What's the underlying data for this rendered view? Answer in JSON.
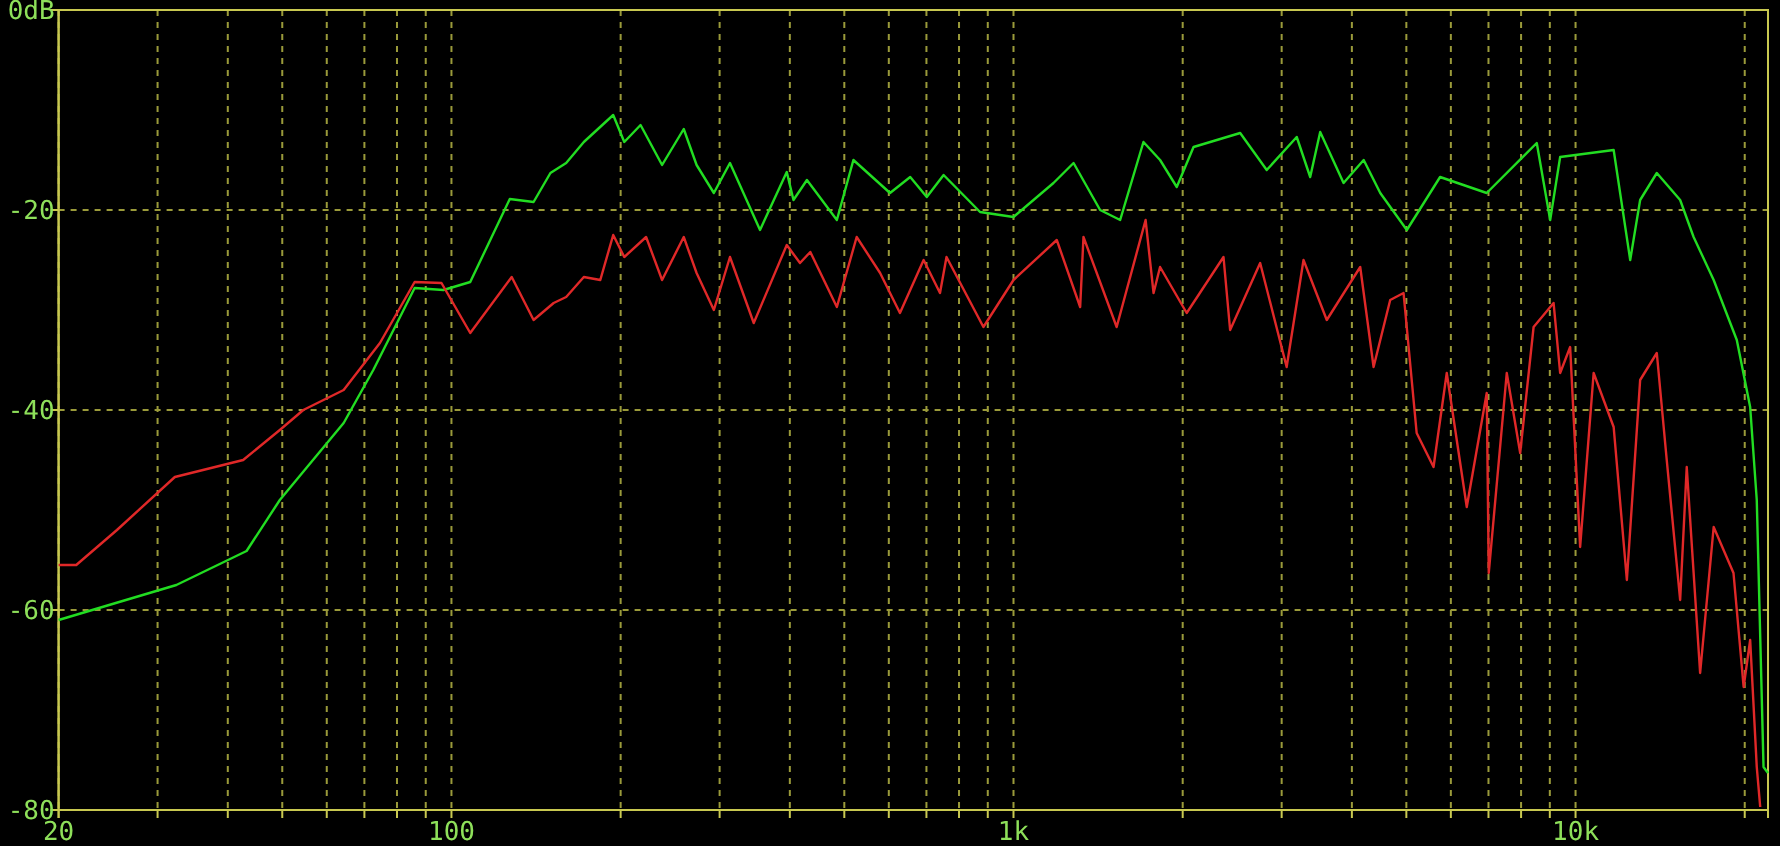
{
  "chart_data": {
    "type": "line",
    "log": "x",
    "grid": true,
    "xlim": [
      20,
      22000
    ],
    "ylim": [
      -80,
      0
    ],
    "xticks": [
      {
        "value": 20,
        "label": "20"
      },
      {
        "value": 30,
        "label": null
      },
      {
        "value": 40,
        "label": null
      },
      {
        "value": 50,
        "label": null
      },
      {
        "value": 60,
        "label": null
      },
      {
        "value": 70,
        "label": null
      },
      {
        "value": 80,
        "label": null
      },
      {
        "value": 90,
        "label": null
      },
      {
        "value": 100,
        "label": "100"
      },
      {
        "value": 200,
        "label": null
      },
      {
        "value": 300,
        "label": null
      },
      {
        "value": 400,
        "label": null
      },
      {
        "value": 500,
        "label": null
      },
      {
        "value": 600,
        "label": null
      },
      {
        "value": 700,
        "label": null
      },
      {
        "value": 800,
        "label": null
      },
      {
        "value": 900,
        "label": null
      },
      {
        "value": 1000,
        "label": "1k"
      },
      {
        "value": 2000,
        "label": null
      },
      {
        "value": 3000,
        "label": null
      },
      {
        "value": 4000,
        "label": null
      },
      {
        "value": 5000,
        "label": null
      },
      {
        "value": 6000,
        "label": null
      },
      {
        "value": 7000,
        "label": null
      },
      {
        "value": 8000,
        "label": null
      },
      {
        "value": 9000,
        "label": null
      },
      {
        "value": 10000,
        "label": "10k"
      },
      {
        "value": 20000,
        "label": null
      }
    ],
    "yticks": [
      {
        "value": 0,
        "label": "0dB"
      },
      -20,
      -40,
      -60,
      -80
    ],
    "series": [
      {
        "color": "#22dd22",
        "x": [
          20,
          32.4,
          43.2,
          49.5,
          64.3,
          72.6,
          86,
          96.8,
          108,
          127,
          140,
          150,
          160,
          172,
          194,
          203,
          217,
          237,
          259,
          273,
          293,
          313,
          354,
          395,
          406,
          429,
          485,
          519,
          603,
          655,
          701,
          751,
          872,
          1000,
          1178,
          1279,
          1426,
          1548,
          1703,
          1823,
          1952,
          2091,
          2531,
          2822,
          3191,
          3372,
          3513,
          3866,
          4198,
          4493,
          5010,
          5741,
          6950,
          8531,
          9013,
          9389,
          11690,
          12510,
          13030,
          13950,
          15350,
          16220,
          17610,
          19360,
          20450,
          21010,
          21600,
          22000
        ],
        "values": [
          -61,
          -57.5,
          -54.1,
          -49,
          -41.3,
          -36,
          -27.8,
          -28,
          -27.2,
          -18.9,
          -19.2,
          -16.3,
          -15.3,
          -13.2,
          -10.5,
          -13.2,
          -11.5,
          -15.5,
          -11.9,
          -15.5,
          -18.3,
          -15.3,
          -22,
          -16.2,
          -19,
          -17,
          -21,
          -15,
          -18.3,
          -16.7,
          -18.7,
          -16.5,
          -20.2,
          -20.7,
          -17.3,
          -15.3,
          -20,
          -21,
          -13.2,
          -15,
          -17.7,
          -13.7,
          -12.3,
          -16,
          -12.7,
          -16.7,
          -12.2,
          -17.3,
          -15,
          -18.3,
          -22,
          -16.7,
          -18.3,
          -13.3,
          -21,
          -14.7,
          -14,
          -25,
          -19,
          -16.3,
          -19,
          -22.7,
          -27,
          -33,
          -39.7,
          -49,
          -75.7,
          -76.3
        ]
      },
      {
        "color": "#e02828",
        "x": [
          20,
          21.5,
          25.4,
          32.2,
          42.6,
          49.5,
          54.5,
          64.3,
          74.6,
          86,
          96,
          108,
          128,
          140,
          152,
          160,
          172,
          184,
          194,
          203,
          222,
          237,
          259,
          273,
          293,
          313,
          345,
          395,
          417,
          435,
          485,
          526,
          579,
          628,
          692,
          740,
          760,
          884,
          1000,
          1194,
          1314,
          1332,
          1526,
          1718,
          1775,
          1823,
          2033,
          2364,
          2429,
          2747,
          3062,
          3281,
          3609,
          4139,
          4372,
          4680,
          4943,
          5216,
          5589,
          5900,
          6404,
          6950,
          7008,
          7544,
          7971,
          8421,
          9140,
          9389,
          9781,
          10190,
          10770,
          11690,
          12340,
          13030,
          13950,
          14530,
          15350,
          15770,
          16660,
          17610,
          19100,
          19910,
          20450,
          21010,
          21310
        ],
        "values": [
          -55.5,
          -55.5,
          -52,
          -46.7,
          -45,
          -42,
          -40,
          -38,
          -33.3,
          -27.2,
          -27.3,
          -32.3,
          -26.7,
          -31,
          -29.3,
          -28.7,
          -26.7,
          -27,
          -22.5,
          -24.7,
          -22.7,
          -27,
          -22.7,
          -26.3,
          -30,
          -24.7,
          -31.3,
          -23.5,
          -25.3,
          -24.2,
          -29.7,
          -22.7,
          -26.3,
          -30.3,
          -25,
          -28.3,
          -24.7,
          -31.7,
          -27,
          -23,
          -29.7,
          -22.7,
          -31.7,
          -21,
          -28.3,
          -25.7,
          -30.3,
          -24.7,
          -32,
          -25.3,
          -35.7,
          -25,
          -31,
          -25.7,
          -35.7,
          -29,
          -28.3,
          -42.3,
          -45.7,
          -36.3,
          -49.7,
          -38.3,
          -56.3,
          -36.3,
          -44.3,
          -31.7,
          -29.3,
          -36.3,
          -33.7,
          -53.7,
          -36.3,
          -41.7,
          -57,
          -37,
          -34.3,
          -45,
          -59,
          -45.7,
          -66.3,
          -51.7,
          -56.3,
          -67.7,
          -63,
          -75.7,
          -79.7
        ]
      }
    ]
  }
}
